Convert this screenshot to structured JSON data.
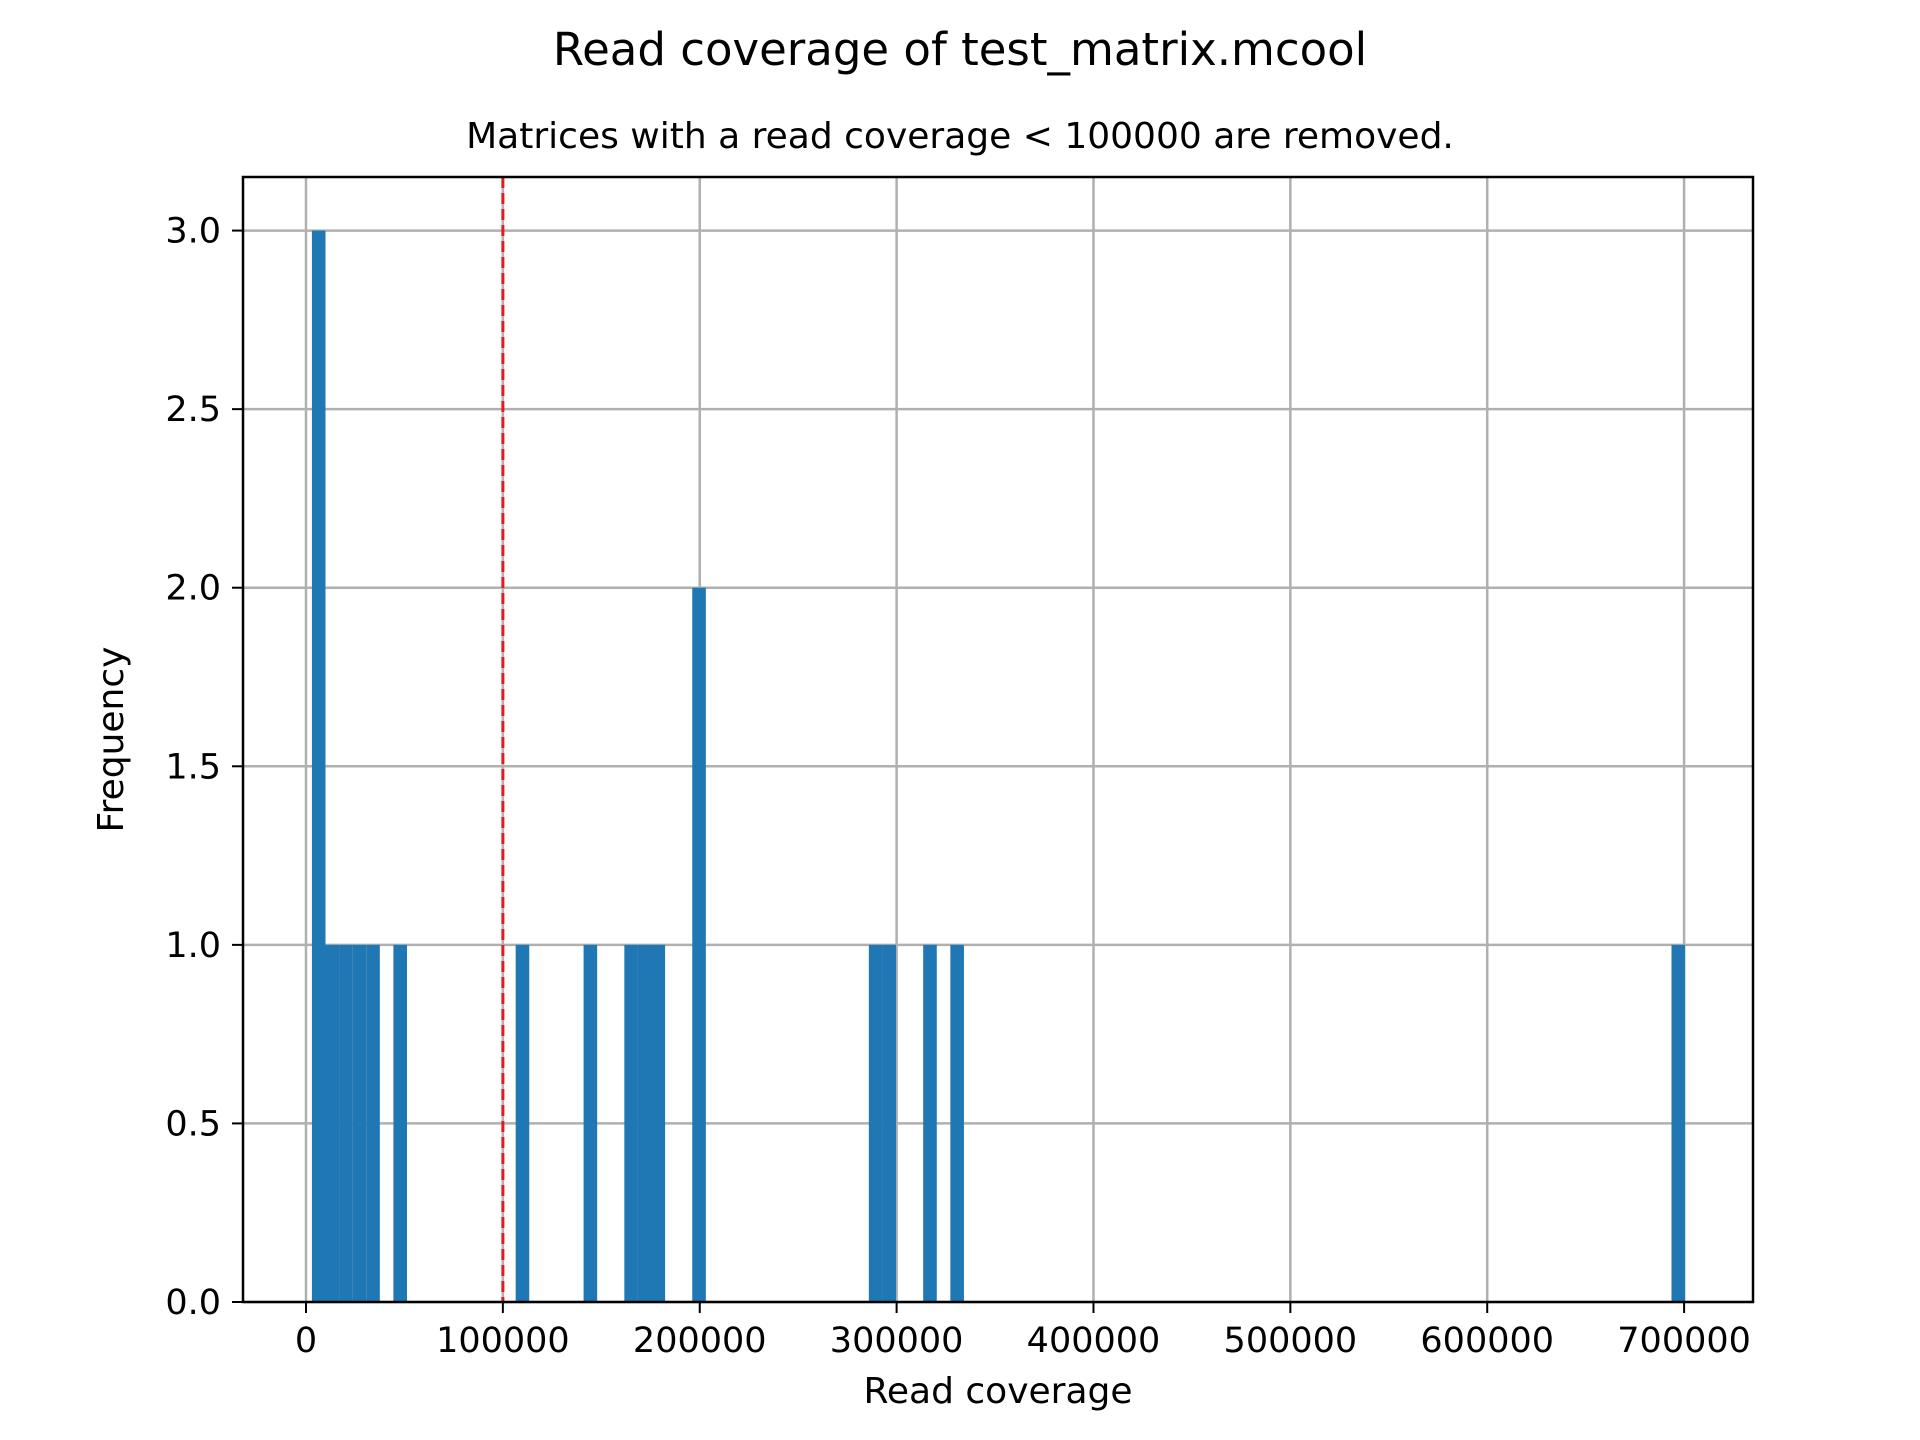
{
  "chart_data": {
    "type": "bar",
    "title": "Read coverage of test_matrix.mcool",
    "subtitle": "Matrices with a read coverage < 100000 are removed.",
    "xlabel": "Read coverage",
    "ylabel": "Frequency",
    "xlim": [
      -32000,
      735000
    ],
    "ylim": [
      0,
      3.15
    ],
    "xticks": [
      0,
      100000,
      200000,
      300000,
      400000,
      500000,
      600000,
      700000
    ],
    "xtick_labels": [
      "0",
      "100000",
      "200000",
      "300000",
      "400000",
      "500000",
      "600000",
      "700000"
    ],
    "yticks": [
      0.0,
      0.5,
      1.0,
      1.5,
      2.0,
      2.5,
      3.0
    ],
    "ytick_labels": [
      "0.0",
      "0.5",
      "1.0",
      "1.5",
      "2.0",
      "2.5",
      "3.0"
    ],
    "grid": true,
    "bin_width": 6900,
    "bins": [
      {
        "x0": 3000,
        "count": 3
      },
      {
        "x0": 9900,
        "count": 1
      },
      {
        "x0": 16800,
        "count": 1
      },
      {
        "x0": 23700,
        "count": 1
      },
      {
        "x0": 30600,
        "count": 1
      },
      {
        "x0": 44400,
        "count": 1
      },
      {
        "x0": 106500,
        "count": 1
      },
      {
        "x0": 141000,
        "count": 1
      },
      {
        "x0": 161700,
        "count": 1
      },
      {
        "x0": 168600,
        "count": 1
      },
      {
        "x0": 175500,
        "count": 1
      },
      {
        "x0": 196200,
        "count": 2
      },
      {
        "x0": 285900,
        "count": 1
      },
      {
        "x0": 292800,
        "count": 1
      },
      {
        "x0": 313500,
        "count": 1
      },
      {
        "x0": 327300,
        "count": 1
      },
      {
        "x0": 693600,
        "count": 1
      }
    ],
    "threshold": {
      "x": 100000,
      "color": "#e41a1c",
      "style": "dashed"
    },
    "bar_color": "#1f77b4"
  }
}
